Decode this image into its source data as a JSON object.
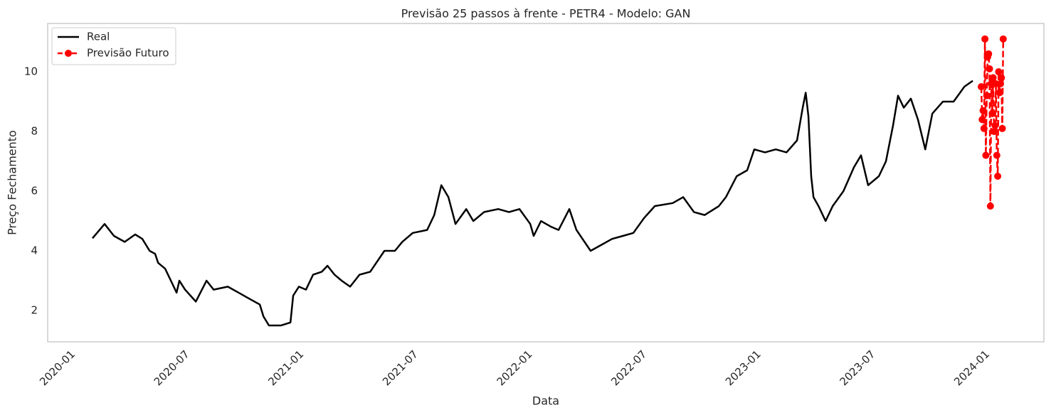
{
  "chart_data": {
    "type": "line",
    "title": "Previsão 25 passos à frente - PETR4 - Modelo: GAN",
    "x_label": "Data",
    "y_label": "Preço Fechamento",
    "xlim": [
      2019.9,
      2024.258
    ],
    "ylim": [
      0.952,
      11.62
    ],
    "xticks": [
      {
        "value": 2020,
        "label": "2020-01"
      },
      {
        "value": 2020.5,
        "label": "2020-07"
      },
      {
        "value": 2021,
        "label": "2021-01"
      },
      {
        "value": 2021.5,
        "label": "2021-07"
      },
      {
        "value": 2022,
        "label": "2022-01"
      },
      {
        "value": 2022.5,
        "label": "2022-07"
      },
      {
        "value": 2023,
        "label": "2023-01"
      },
      {
        "value": 2023.5,
        "label": "2023-07"
      },
      {
        "value": 2024,
        "label": "2024-01"
      }
    ],
    "yticks": [
      2,
      4,
      6,
      8,
      10
    ],
    "grid": false,
    "legend": "upper left",
    "series": [
      {
        "name": "Real",
        "color": "#000000",
        "linestyle": "solid",
        "marker": false,
        "x": [
          2020.096,
          2020.149,
          2020.19,
          2020.237,
          2020.283,
          2020.314,
          2020.346,
          2020.37,
          2020.383,
          2020.414,
          2020.439,
          2020.464,
          2020.476,
          2020.501,
          2020.548,
          2020.595,
          2020.626,
          2020.688,
          2020.735,
          2020.781,
          2020.828,
          2020.844,
          2020.868,
          2020.921,
          2020.962,
          2020.974,
          2020.999,
          2021.03,
          2021.061,
          2021.099,
          2021.124,
          2021.155,
          2021.186,
          2021.223,
          2021.264,
          2021.311,
          2021.373,
          2021.419,
          2021.451,
          2021.497,
          2021.56,
          2021.591,
          2021.622,
          2021.653,
          2021.684,
          2021.731,
          2021.762,
          2021.809,
          2021.871,
          2021.918,
          2021.964,
          2022.011,
          2022.026,
          2022.058,
          2022.104,
          2022.135,
          2022.182,
          2022.213,
          2022.275,
          2022.322,
          2022.369,
          2022.416,
          2022.462,
          2022.509,
          2022.556,
          2022.634,
          2022.68,
          2022.727,
          2022.774,
          2022.836,
          2022.867,
          2022.914,
          2022.96,
          2022.991,
          2023.038,
          2023.085,
          2023.132,
          2023.178,
          2023.203,
          2023.216,
          2023.228,
          2023.24,
          2023.25,
          2023.272,
          2023.303,
          2023.334,
          2023.381,
          2023.427,
          2023.458,
          2023.489,
          2023.536,
          2023.567,
          2023.598,
          2023.62,
          2023.645,
          2023.676,
          2023.707,
          2023.739,
          2023.77,
          2023.816,
          2023.863,
          2023.91,
          2023.947
        ],
        "values": [
          4.42,
          4.9,
          4.5,
          4.3,
          4.55,
          4.4,
          4.0,
          3.9,
          3.6,
          3.4,
          3.0,
          2.6,
          3.0,
          2.7,
          2.3,
          3.0,
          2.7,
          2.8,
          2.6,
          2.4,
          2.2,
          1.8,
          1.5,
          1.5,
          1.6,
          2.5,
          2.8,
          2.7,
          3.2,
          3.3,
          3.5,
          3.2,
          3.0,
          2.8,
          3.2,
          3.3,
          4.0,
          4.0,
          4.3,
          4.6,
          4.7,
          5.2,
          6.2,
          5.8,
          4.9,
          5.4,
          5.0,
          5.3,
          5.4,
          5.3,
          5.4,
          4.9,
          4.5,
          5.0,
          4.8,
          4.7,
          5.4,
          4.7,
          4.0,
          4.2,
          4.4,
          4.5,
          4.6,
          5.1,
          5.5,
          5.6,
          5.8,
          5.3,
          5.2,
          5.5,
          5.8,
          6.5,
          6.7,
          7.4,
          7.3,
          7.4,
          7.3,
          7.7,
          8.8,
          9.3,
          8.5,
          6.5,
          5.8,
          5.5,
          5.0,
          5.5,
          6.0,
          6.8,
          7.2,
          6.2,
          6.5,
          7.0,
          8.2,
          9.2,
          8.8,
          9.1,
          8.4,
          7.4,
          8.6,
          9.0,
          9.0,
          9.5,
          9.7
        ]
      },
      {
        "name": "Previsão Futuro",
        "color": "#ff0000",
        "linestyle": "dashed",
        "marker": true,
        "x": [
          2023.984,
          2023.988,
          2023.992,
          2023.996,
          2024.0,
          2024.004,
          2024.008,
          2024.012,
          2024.016,
          2024.02,
          2024.024,
          2024.028,
          2024.032,
          2024.036,
          2024.04,
          2024.044,
          2024.048,
          2024.052,
          2024.056,
          2024.06,
          2024.064,
          2024.068,
          2024.072,
          2024.076,
          2024.08
        ],
        "values": [
          9.5,
          8.4,
          8.7,
          8.1,
          11.1,
          7.2,
          9.2,
          10.5,
          10.6,
          10.1,
          5.5,
          9.6,
          8.6,
          9.8,
          8.0,
          8.2,
          9.6,
          7.2,
          6.5,
          10.0,
          9.3,
          9.6,
          9.8,
          8.1,
          11.1
        ]
      }
    ]
  }
}
